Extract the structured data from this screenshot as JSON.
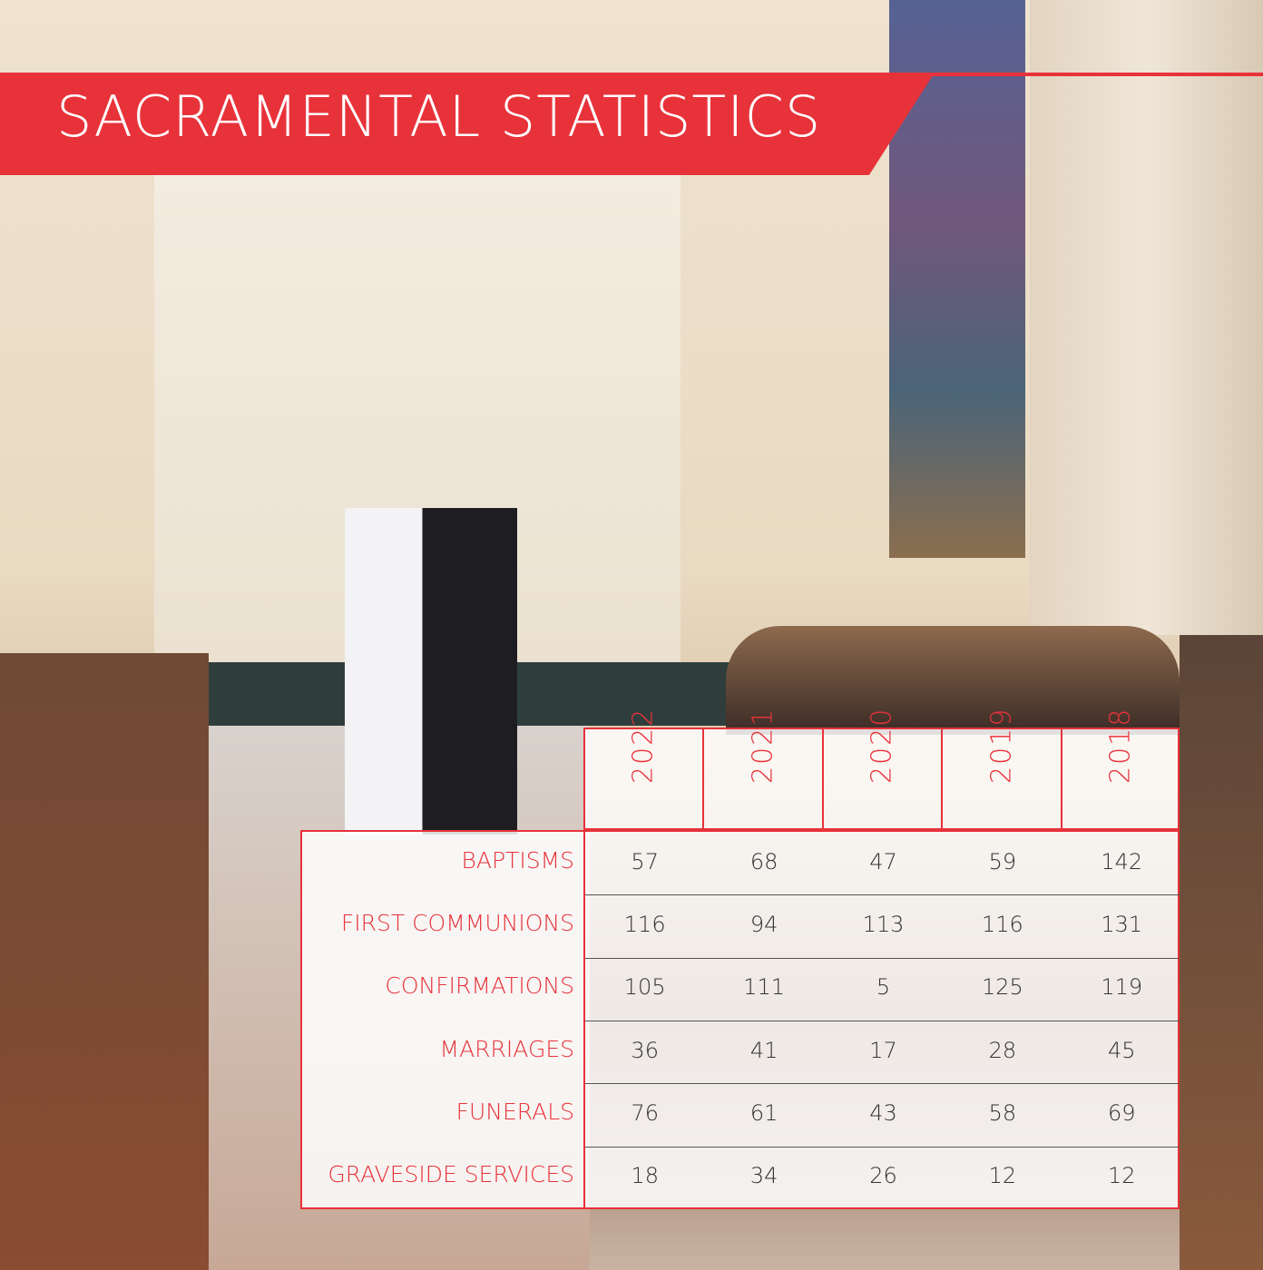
{
  "title": "SACRAMENTAL STATISTICS",
  "table": {
    "columns": [
      "2022",
      "2021",
      "2020",
      "2019",
      "2018"
    ],
    "rows": [
      {
        "label": "BAPTISMS",
        "values": [
          57,
          68,
          47,
          59,
          142
        ]
      },
      {
        "label": "FIRST COMMUNIONS",
        "values": [
          116,
          94,
          113,
          116,
          131
        ]
      },
      {
        "label": "CONFIRMATIONS",
        "values": [
          105,
          111,
          5,
          125,
          119
        ]
      },
      {
        "label": "MARRIAGES",
        "values": [
          36,
          41,
          17,
          28,
          45
        ]
      },
      {
        "label": "FUNERALS",
        "values": [
          76,
          61,
          43,
          58,
          69
        ]
      },
      {
        "label": "GRAVESIDE SERVICES",
        "values": [
          18,
          34,
          26,
          12,
          12
        ]
      }
    ]
  }
}
